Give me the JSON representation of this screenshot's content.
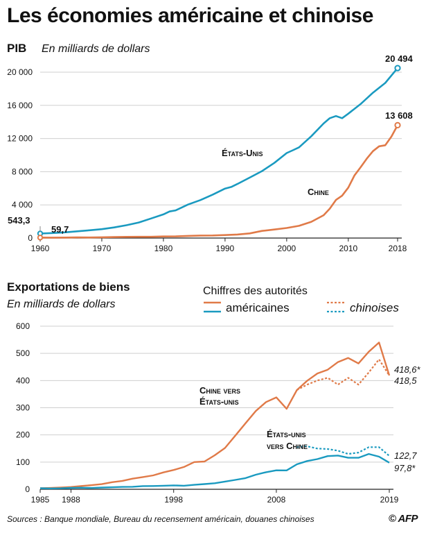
{
  "title": "Les économies américaine et chinoise",
  "source": "Sources : Banque mondiale, Bureau du recensement américain, douanes chinoises",
  "logo": "© AFP",
  "colors": {
    "us": "#1a9ac0",
    "china": "#e07a48",
    "axis": "#222222",
    "grid": "#cfcfcf"
  },
  "chart_data": [
    {
      "type": "line",
      "title": "PIB",
      "subtitle": "En milliards de dollars",
      "x_ticks": [
        1960,
        1970,
        1980,
        1990,
        2000,
        2010,
        2018
      ],
      "y_ticks": [
        0,
        4000,
        8000,
        12000,
        16000,
        20000
      ],
      "y_tick_labels": [
        "0",
        "4 000",
        "8 000",
        "12 000",
        "16 000",
        "20 000"
      ],
      "xlim": [
        1960,
        2018
      ],
      "ylim": [
        0,
        21000
      ],
      "grid": true,
      "callouts": {
        "us": "États-Unis",
        "china": "Chine"
      },
      "annotations": {
        "us_start": "543,3",
        "china_start": "59,7",
        "us_end": "20 494",
        "china_end": "13 608"
      },
      "series": [
        {
          "key": "us",
          "x": [
            1960,
            1962,
            1964,
            1966,
            1968,
            1970,
            1972,
            1974,
            1976,
            1978,
            1980,
            1981,
            1982,
            1984,
            1986,
            1988,
            1990,
            1991,
            1992,
            1994,
            1996,
            1998,
            2000,
            2001,
            2002,
            2004,
            2006,
            2007,
            2008,
            2009,
            2010,
            2012,
            2014,
            2016,
            2018
          ],
          "values": [
            543.3,
            605,
            685,
            813,
            940,
            1073,
            1280,
            1545,
            1877,
            2357,
            2857,
            3207,
            3343,
            4040,
            4579,
            5236,
            5963,
            6158,
            6520,
            7287,
            8073,
            9063,
            10252,
            10582,
            10936,
            12275,
            13815,
            14452,
            14713,
            14449,
            14992,
            16155,
            17522,
            18707,
            20494
          ]
        },
        {
          "key": "china",
          "x": [
            1960,
            1962,
            1964,
            1966,
            1968,
            1970,
            1972,
            1974,
            1976,
            1978,
            1980,
            1982,
            1984,
            1986,
            1988,
            1990,
            1992,
            1994,
            1996,
            1998,
            2000,
            2002,
            2004,
            2006,
            2007,
            2008,
            2009,
            2010,
            2011,
            2012,
            2013,
            2014,
            2015,
            2016,
            2017,
            2018
          ],
          "values": [
            59.7,
            47,
            59,
            77,
            71,
            92,
            113,
            144,
            154,
            150,
            191,
            205,
            260,
            300,
            312,
            361,
            427,
            564,
            864,
            1029,
            1211,
            1471,
            1955,
            2752,
            3552,
            4598,
            5110,
            6087,
            7552,
            8532,
            9570,
            10475,
            11062,
            11191,
            12238,
            13608
          ]
        }
      ]
    },
    {
      "type": "line",
      "title": "Exportations de biens",
      "subtitle": "En milliards de dollars",
      "legend_title": "Chiffres des autorités",
      "legend": {
        "solid": "américaines",
        "dashed": "chinoises"
      },
      "legend_placement": "top-right",
      "x_ticks": [
        1985,
        1988,
        1998,
        2008,
        2019
      ],
      "y_ticks": [
        0,
        100,
        200,
        300,
        400,
        500,
        600
      ],
      "xlim": [
        1985,
        2019
      ],
      "ylim": [
        0,
        600
      ],
      "grid": true,
      "callouts": {
        "china_us": [
          "Chine vers",
          "États-unis"
        ],
        "us_china": [
          "États-unis",
          "vers Chine"
        ]
      },
      "annotations": {
        "china_us_us_figures": "418,6*",
        "china_us_cn_figures": "418,5",
        "us_china_cn_figures": "122,7",
        "us_china_us_figures": "97,8*"
      },
      "series": [
        {
          "key": "china_to_us_us_figures",
          "x": [
            1985,
            1986,
            1987,
            1988,
            1989,
            1990,
            1991,
            1992,
            1993,
            1994,
            1995,
            1996,
            1997,
            1998,
            1999,
            2000,
            2001,
            2002,
            2003,
            2004,
            2005,
            2006,
            2007,
            2008,
            2009,
            2010,
            2011,
            2012,
            2013,
            2014,
            2015,
            2016,
            2017,
            2018,
            2019
          ],
          "values": [
            3.9,
            4.8,
            6.3,
            8.5,
            12,
            15,
            19,
            26,
            31,
            39,
            45,
            51,
            62,
            71,
            82,
            100,
            102,
            125,
            152,
            197,
            243,
            288,
            321,
            338,
            296,
            365,
            399,
            426,
            440,
            468,
            483,
            463,
            506,
            540,
            418.6
          ]
        },
        {
          "key": "china_to_us_cn_figures",
          "x": [
            2010,
            2011,
            2012,
            2013,
            2014,
            2015,
            2016,
            2017,
            2018,
            2019
          ],
          "values": [
            365,
            385,
            400,
            410,
            385,
            410,
            385,
            430,
            478,
            418.5
          ]
        },
        {
          "key": "us_to_china_us_figures",
          "x": [
            1985,
            1986,
            1987,
            1988,
            1989,
            1990,
            1991,
            1992,
            1993,
            1994,
            1995,
            1996,
            1997,
            1998,
            1999,
            2000,
            2001,
            2002,
            2003,
            2004,
            2005,
            2006,
            2007,
            2008,
            2009,
            2010,
            2011,
            2012,
            2013,
            2014,
            2015,
            2016,
            2017,
            2018,
            2019
          ],
          "values": [
            3.9,
            3.1,
            3.5,
            5,
            5.8,
            4.8,
            6.3,
            7.4,
            8.8,
            9.3,
            11.8,
            12,
            12.9,
            14.3,
            13.1,
            16.3,
            19.2,
            22.1,
            28.4,
            34.4,
            41.2,
            53.7,
            62.9,
            69.7,
            69.5,
            91.9,
            104,
            111,
            122,
            124,
            116,
            116,
            130,
            120,
            97.8
          ]
        },
        {
          "key": "us_to_china_cn_figures",
          "x": [
            2010,
            2011,
            2012,
            2013,
            2014,
            2015,
            2016,
            2017,
            2018,
            2019
          ],
          "values": [
            155,
            158,
            150,
            148,
            142,
            130,
            135,
            155,
            155,
            122.7
          ]
        }
      ]
    }
  ]
}
